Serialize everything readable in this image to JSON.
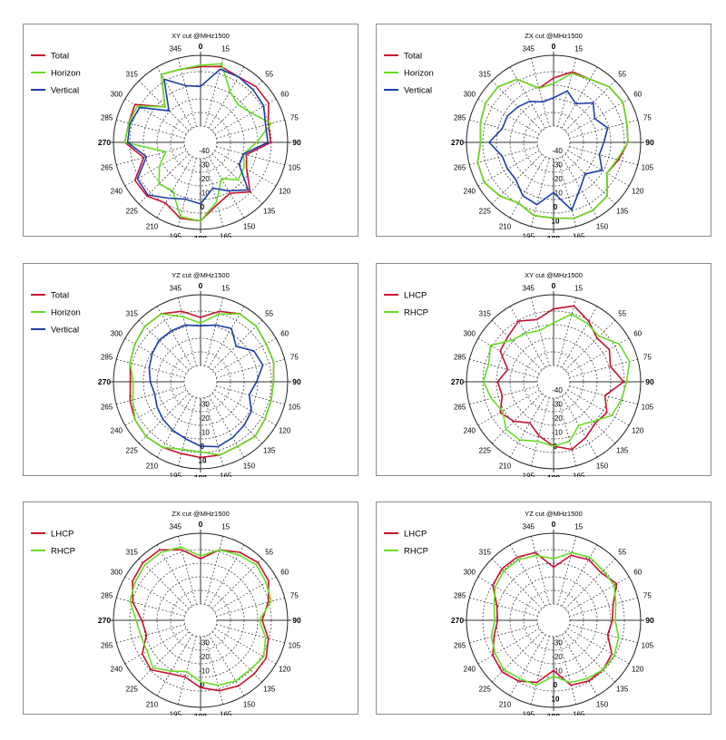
{
  "colors": {
    "total": "#c8102e",
    "horizon": "#66dd22",
    "vertical": "#1a3ea8",
    "lhcp": "#c8102e",
    "rhcp": "#66dd22"
  },
  "chart_data": [
    {
      "type": "polar-line",
      "title": "XY cut @MHz1500",
      "angles": [
        0,
        15,
        30,
        45,
        60,
        75,
        90,
        105,
        120,
        135,
        150,
        165,
        180,
        195,
        210,
        225,
        240,
        255,
        270,
        285,
        300,
        315,
        330,
        345
      ],
      "angle_labels": [
        "0",
        "15",
        "55",
        "60",
        "75",
        "90",
        "105",
        "120",
        "135",
        "150",
        "165",
        "180",
        "195",
        "210",
        "225",
        "240",
        "265",
        "270",
        "285",
        "300",
        "315",
        "345"
      ],
      "radial_labels": [
        "-40",
        "-30",
        "-20",
        "-10",
        "0"
      ],
      "rlim": [
        -50,
        0
      ],
      "legend": "top-left",
      "series": [
        {
          "name": "Total",
          "color_key": "total",
          "values": [
            -8,
            -6,
            -8,
            -6,
            -6,
            -12,
            -12,
            -28,
            -24,
            -12,
            -20,
            -16,
            -6,
            -6,
            -12,
            -8,
            -8,
            -20,
            -8,
            -9,
            -8,
            -26,
            -6,
            -8
          ]
        },
        {
          "name": "Horizon",
          "color_key": "horizon",
          "values": [
            -7,
            -4,
            -20,
            -24,
            -20,
            -10,
            -22,
            -30,
            -26,
            -24,
            -32,
            -18,
            -6,
            -7,
            -22,
            -20,
            -28,
            -36,
            -8,
            -9,
            -10,
            -26,
            -6,
            -8
          ]
        },
        {
          "name": "Vertical",
          "color_key": "vertical",
          "values": [
            -22,
            -8,
            -8,
            -9,
            -10,
            -14,
            -14,
            -30,
            -30,
            -14,
            -22,
            -28,
            -18,
            -20,
            -16,
            -9,
            -10,
            -22,
            -10,
            -10,
            -12,
            -30,
            -10,
            -20
          ]
        }
      ]
    },
    {
      "type": "polar-line",
      "title": "ZX cut @MHz1500",
      "angles": [
        0,
        15,
        30,
        45,
        60,
        75,
        90,
        105,
        120,
        135,
        150,
        165,
        180,
        195,
        210,
        225,
        240,
        255,
        270,
        285,
        300,
        315,
        330,
        345
      ],
      "angle_labels": [
        "0",
        "15",
        "55",
        "60",
        "75",
        "90",
        "105",
        "120",
        "135",
        "150",
        "165",
        "180",
        "195",
        "210",
        "225",
        "240",
        "265",
        "270",
        "285",
        "300",
        "315",
        "345"
      ],
      "radial_labels": [
        "-40",
        "-30",
        "-20",
        "-10",
        "0",
        "10"
      ],
      "rlim": [
        -50,
        0
      ],
      "legend": "top-left",
      "series": [
        {
          "name": "Total",
          "color_key": "total",
          "values": [
            -16,
            -10,
            -10,
            -6,
            -5,
            -8,
            -9,
            -14,
            -18,
            -8,
            -6,
            -6,
            -8,
            -8,
            -12,
            -8,
            -5,
            -6,
            -10,
            -8,
            -6,
            -6,
            -10,
            -22
          ]
        },
        {
          "name": "Horizon",
          "color_key": "horizon",
          "values": [
            -20,
            -11,
            -10,
            -6,
            -5,
            -8,
            -9,
            -15,
            -18,
            -8,
            -6,
            -6,
            -8,
            -8,
            -12,
            -8,
            -5,
            -6,
            -10,
            -8,
            -6,
            -6,
            -10,
            -22
          ]
        },
        {
          "name": "Vertical",
          "color_key": "vertical",
          "values": [
            -30,
            -24,
            -30,
            -22,
            -28,
            -22,
            -26,
            -28,
            -22,
            -30,
            -24,
            -12,
            -26,
            -16,
            -18,
            -24,
            -24,
            -24,
            -16,
            -24,
            -24,
            -26,
            -28,
            -32
          ]
        }
      ]
    },
    {
      "type": "polar-line",
      "title": "YZ cut @MHz1500",
      "angles": [
        0,
        15,
        30,
        45,
        60,
        75,
        90,
        105,
        120,
        135,
        150,
        165,
        180,
        195,
        210,
        225,
        240,
        255,
        270,
        285,
        300,
        315,
        330,
        345
      ],
      "angle_labels": [
        "0",
        "15",
        "55",
        "60",
        "75",
        "90",
        "105",
        "120",
        "135",
        "150",
        "165",
        "180",
        "195",
        "210",
        "225",
        "240",
        "265",
        "270",
        "285",
        "300",
        "315",
        "345"
      ],
      "radial_labels": [
        "-30",
        "-20",
        "-10",
        "0",
        "10"
      ],
      "rlim": [
        -50,
        0
      ],
      "legend": "top-left",
      "series": [
        {
          "name": "Total",
          "color_key": "total",
          "values": [
            -16,
            -10,
            -6,
            -6,
            -8,
            -8,
            -10,
            -10,
            -9,
            -7,
            -9,
            -8,
            -8,
            -9,
            -8,
            -7,
            -8,
            -10,
            -12,
            -10,
            -8,
            -6,
            -6,
            -10
          ]
        },
        {
          "name": "Horizon",
          "color_key": "horizon",
          "values": [
            -20,
            -12,
            -6,
            -6,
            -8,
            -8,
            -10,
            -10,
            -9,
            -7,
            -9,
            -8,
            -12,
            -12,
            -8,
            -7,
            -8,
            -12,
            -14,
            -10,
            -8,
            -6,
            -6,
            -14
          ]
        },
        {
          "name": "Vertical",
          "color_key": "vertical",
          "values": [
            -22,
            -20,
            -18,
            -26,
            -18,
            -16,
            -22,
            -26,
            -20,
            -18,
            -16,
            -14,
            -16,
            -20,
            -22,
            -24,
            -26,
            -28,
            -26,
            -24,
            -22,
            -20,
            -20,
            -20
          ]
        }
      ]
    },
    {
      "type": "polar-line",
      "title": "XY cut @MHz1500",
      "angles": [
        0,
        15,
        30,
        45,
        60,
        75,
        90,
        105,
        120,
        135,
        150,
        165,
        180,
        195,
        210,
        225,
        240,
        255,
        270,
        285,
        300,
        315,
        330,
        345
      ],
      "angle_labels": [
        "0",
        "15",
        "55",
        "60",
        "75",
        "90",
        "105",
        "120",
        "135",
        "150",
        "165",
        "180",
        "195",
        "210",
        "225",
        "240",
        "265",
        "270",
        "285",
        "300",
        "315",
        "345"
      ],
      "radial_labels": [
        "-40",
        "-30",
        "-20",
        "-10",
        "0"
      ],
      "rlim": [
        -50,
        0
      ],
      "legend": "top-left",
      "series": [
        {
          "name": "LHCP",
          "color_key": "lhcp",
          "values": [
            -10,
            -6,
            -12,
            -18,
            -16,
            -20,
            -12,
            -24,
            -18,
            -20,
            -16,
            -12,
            -16,
            -22,
            -28,
            -22,
            -18,
            -24,
            -22,
            -28,
            -18,
            -16,
            -12,
            -16
          ]
        },
        {
          "name": "RHCP",
          "color_key": "rhcp",
          "values": [
            -20,
            -12,
            -14,
            -16,
            -8,
            -6,
            -10,
            -12,
            -14,
            -22,
            -26,
            -18,
            -16,
            -18,
            -14,
            -14,
            -20,
            -16,
            -12,
            -14,
            -10,
            -20,
            -22,
            -24
          ]
        }
      ]
    },
    {
      "type": "polar-line",
      "title": "ZX cut @MHz1500",
      "angles": [
        0,
        15,
        30,
        45,
        60,
        75,
        90,
        105,
        120,
        135,
        150,
        165,
        180,
        195,
        210,
        225,
        240,
        255,
        270,
        285,
        300,
        315,
        330,
        345
      ],
      "angle_labels": [
        "0",
        "15",
        "55",
        "60",
        "75",
        "90",
        "105",
        "120",
        "135",
        "150",
        "165",
        "180",
        "195",
        "210",
        "225",
        "240",
        "265",
        "270",
        "285",
        "300",
        "315",
        "345"
      ],
      "radial_labels": [
        "-30",
        "-20",
        "-10",
        "0"
      ],
      "rlim": [
        -50,
        0
      ],
      "legend": "top-left",
      "series": [
        {
          "name": "LHCP",
          "color_key": "lhcp",
          "values": [
            -18,
            -10,
            -6,
            -4,
            -6,
            -12,
            -18,
            -12,
            -8,
            -8,
            -8,
            -10,
            -14,
            -20,
            -18,
            -12,
            -14,
            -22,
            -20,
            -12,
            -6,
            -4,
            -4,
            -10
          ]
        },
        {
          "name": "RHCP",
          "color_key": "rhcp",
          "values": [
            -16,
            -10,
            -8,
            -6,
            -8,
            -10,
            -20,
            -14,
            -10,
            -12,
            -12,
            -14,
            -18,
            -24,
            -20,
            -14,
            -18,
            -18,
            -16,
            -10,
            -8,
            -6,
            -6,
            -8
          ]
        }
      ]
    },
    {
      "type": "polar-line",
      "title": "YZ cut @MHz1500",
      "angles": [
        0,
        15,
        30,
        45,
        60,
        75,
        90,
        105,
        120,
        135,
        150,
        165,
        180,
        195,
        210,
        225,
        240,
        255,
        270,
        285,
        300,
        315,
        330,
        345
      ],
      "angle_labels": [
        "0",
        "15",
        "55",
        "60",
        "75",
        "90",
        "105",
        "120",
        "135",
        "150",
        "165",
        "180",
        "195",
        "210",
        "225",
        "240",
        "265",
        "270",
        "285",
        "300",
        "315",
        "345"
      ],
      "radial_labels": [
        "-30",
        "-20",
        "-10",
        "0",
        "10"
      ],
      "rlim": [
        -50,
        0
      ],
      "legend": "top-left",
      "series": [
        {
          "name": "LHCP",
          "color_key": "lhcp",
          "values": [
            -24,
            -14,
            -12,
            -14,
            -10,
            -18,
            -20,
            -22,
            -14,
            -12,
            -12,
            -14,
            -26,
            -16,
            -12,
            -10,
            -12,
            -18,
            -22,
            -20,
            -12,
            -10,
            -10,
            -12
          ]
        },
        {
          "name": "RHCP",
          "color_key": "rhcp",
          "values": [
            -18,
            -12,
            -10,
            -12,
            -12,
            -16,
            -18,
            -14,
            -12,
            -12,
            -14,
            -16,
            -22,
            -14,
            -14,
            -12,
            -14,
            -16,
            -20,
            -18,
            -14,
            -12,
            -12,
            -14
          ]
        }
      ]
    }
  ]
}
